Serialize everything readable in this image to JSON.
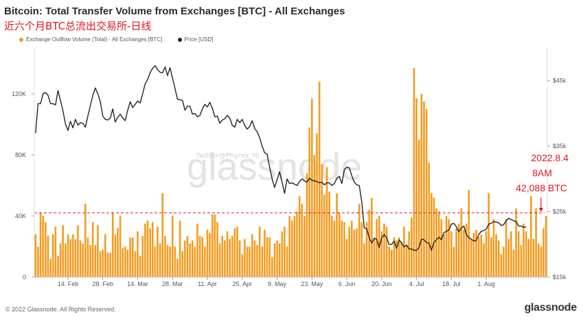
{
  "title": "Bitcoin: Total Transfer Volume from Exchanges [BTC] - All Exchanges",
  "subtitle": "近六个月BTC总流出交易所-日线",
  "legend": [
    {
      "label": "Exchange Outflow Volume (Total) - All Exchanges [BTC]",
      "color": "#f39c20"
    },
    {
      "label": "Price [USD]",
      "color": "#222222"
    }
  ],
  "watermark": "glassnode",
  "watermark_small": "Twitter@Phyrex_Ni",
  "annotation": {
    "line1": "2022.8.4",
    "line2": "8AM",
    "line3": "42,088 BTC"
  },
  "footer": {
    "copyright": "© 2022 Glassnode. All Rights Reserved.",
    "brand": "glassnode"
  },
  "colors": {
    "bar": "#f39c20",
    "price": "#222222",
    "reference": "#e0151b",
    "annotation": "#e0151b"
  },
  "chart_data": {
    "type": "bar",
    "title": "Bitcoin: Total Transfer Volume from Exchanges [BTC] - All Exchanges",
    "x_ticks": [
      "14. Feb",
      "28. Feb",
      "14. Mar",
      "28. Mar",
      "11. Apr",
      "25. Apr",
      "9. May",
      "23. May",
      "6. Jun",
      "20. Jun",
      "4. Jul",
      "18. Jul",
      "1. Aug"
    ],
    "y_left": {
      "ticks": [
        "0",
        "40K",
        "80K",
        "120K"
      ],
      "range": [
        0,
        150000
      ]
    },
    "y_right": {
      "ticks": [
        "$15k",
        "$25k",
        "$35k",
        "$45k"
      ],
      "range": [
        15000,
        50000
      ]
    },
    "grid": false,
    "legend_position": "top-left",
    "reference_line": {
      "value": 42088,
      "style": "dashed"
    },
    "series": [
      {
        "name": "Exchange Outflow Volume (Total) - All Exchanges [BTC]",
        "type": "bar",
        "axis": "left",
        "values": [
          28000,
          20000,
          42000,
          40000,
          36000,
          27000,
          12000,
          28000,
          33000,
          14000,
          22000,
          34000,
          22000,
          28000,
          25000,
          28000,
          25000,
          34000,
          24000,
          22000,
          48000,
          26000,
          21000,
          36000,
          21000,
          34000,
          17000,
          18000,
          28000,
          16000,
          16000,
          42000,
          28000,
          32000,
          40000,
          19000,
          20000,
          18000,
          26000,
          26000,
          17000,
          30000,
          14000,
          27000,
          35000,
          37000,
          32000,
          36000,
          20000,
          33000,
          22000,
          55000,
          27000,
          21000,
          20000,
          40000,
          20000,
          12000,
          37000,
          17000,
          24000,
          27000,
          22000,
          24000,
          20000,
          35000,
          27000,
          26000,
          20000,
          31000,
          29000,
          41000,
          41000,
          36000,
          22000,
          27000,
          24000,
          30000,
          25000,
          27000,
          32000,
          33000,
          24000,
          15000,
          25000,
          20000,
          20000,
          28000,
          24000,
          21000,
          33000,
          20000,
          31000,
          26000,
          26000,
          13000,
          22000,
          24000,
          22000,
          30000,
          33000,
          20000,
          40000,
          37000,
          40000,
          43000,
          53000,
          48000,
          40000,
          68000,
          98000,
          117000,
          80000,
          94000,
          128000,
          74000,
          54000,
          72000,
          56000,
          40000,
          37000,
          55000,
          42000,
          37000,
          36000,
          25000,
          33000,
          37000,
          31000,
          32000,
          48000,
          36000,
          22000,
          36000,
          44000,
          52000,
          26000,
          38000,
          40000,
          30000,
          35000,
          33000,
          20000,
          18000,
          26000,
          24000,
          26000,
          23000,
          33000,
          21000,
          30000,
          39000,
          137000,
          117000,
          90000,
          120000,
          115000,
          110000,
          75000,
          55000,
          52000,
          45000,
          43000,
          38000,
          28000,
          40000,
          38000,
          30000,
          20000,
          32000,
          35000,
          45000,
          31000,
          35000,
          57000,
          25000,
          29000,
          31000,
          26000,
          28000,
          22000,
          30000,
          55000,
          26000,
          38000,
          28000,
          24000,
          15000,
          20000,
          38000,
          25000,
          30000,
          18000,
          45000,
          30000,
          21000,
          35000,
          30000,
          25000,
          53000,
          25000,
          45000,
          22000,
          20000,
          32000,
          40000
        ]
      },
      {
        "name": "Price [USD]",
        "type": "line",
        "axis": "right",
        "values": [
          37000,
          41500,
          41500,
          43000,
          43200,
          42800,
          41500,
          41500,
          41300,
          43500,
          42000,
          40400,
          38400,
          37400,
          38800,
          37800,
          39100,
          38200,
          38600,
          38500,
          37900,
          39600,
          41200,
          42800,
          43900,
          43000,
          41800,
          39600,
          39100,
          39000,
          39300,
          40700,
          38700,
          39400,
          39900,
          39300,
          38900,
          40500,
          41800,
          40900,
          41400,
          41900,
          41600,
          43000,
          44500,
          45200,
          46200,
          46900,
          47300,
          46700,
          46300,
          46200,
          47100,
          45800,
          47000,
          45400,
          43800,
          42200,
          42100,
          42000,
          40500,
          41100,
          41100,
          39900,
          40000,
          39500,
          39700,
          40700,
          41400,
          41000,
          41700,
          40800,
          39500,
          39600,
          38500,
          39000,
          39200,
          39700,
          39300,
          38200,
          37900,
          39100,
          38600,
          39100,
          38200,
          37600,
          38000,
          38900,
          37700,
          37200,
          36300,
          35000,
          34000,
          33800,
          31800,
          30000,
          28700,
          29900,
          31100,
          29500,
          27800,
          30000,
          29300,
          29400,
          29200,
          29000,
          29600,
          30000,
          29700,
          29500,
          30100,
          29800,
          29700,
          29600,
          29400,
          29500,
          29100,
          29400,
          29400,
          29000,
          29300,
          30100,
          30400,
          29300,
          31400,
          31800,
          31700,
          30500,
          29500,
          29100,
          29000,
          26500,
          22500,
          22400,
          21000,
          20200,
          20900,
          20800,
          19500,
          21000,
          21500,
          21000,
          20000,
          20000,
          20500,
          19400,
          20700,
          20200,
          19600,
          19900,
          19300,
          19300,
          19100,
          19100,
          19500,
          20800,
          20700,
          20300,
          20200,
          19100,
          20300,
          20700,
          21100,
          20700,
          21800,
          22000,
          22200,
          23100,
          23200,
          22700,
          21900,
          22500,
          22800,
          21500,
          21000,
          20800,
          20500,
          20600,
          21500,
          22000,
          22100,
          22300,
          23100,
          23200,
          23500,
          23400,
          23300,
          22900,
          23000,
          23600,
          24000,
          23800,
          23600,
          23500,
          22800,
          22800,
          22600,
          22700
        ]
      }
    ]
  }
}
